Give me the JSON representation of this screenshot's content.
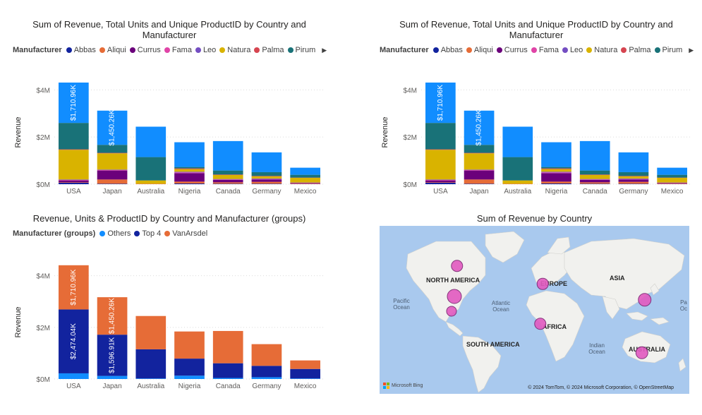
{
  "colors": {
    "Abbas": "#12239E",
    "Aliqui": "#E66C37",
    "Currus": "#6B007B",
    "Fama": "#E044A7",
    "Leo": "#744EC2",
    "Natura": "#D9B300",
    "Palma": "#D64550",
    "Pirum": "#197278",
    "VanArsdel": "#118DFF",
    "Others": "#118DFF",
    "Top 4": "#12239E",
    "VanArsdel (groups)": "#E66C37",
    "gridline": "#dcdcdc",
    "map_ocean": "#a9c9ee",
    "map_land": "#f1f1ee",
    "bubble": "#e25ac0"
  },
  "visual1": {
    "title": "Sum of Revenue, Total Units and Unique ProductID by Country and Manufacturer",
    "legend_title": "Manufacturer",
    "legend": [
      "Abbas",
      "Aliqui",
      "Currus",
      "Fama",
      "Leo",
      "Natura",
      "Palma",
      "Pirum"
    ],
    "legend_more_icon": "chevron-right-icon"
  },
  "visual2": {
    "title": "Sum of Revenue, Total Units and Unique ProductID by Country and Manufacturer",
    "legend_title": "Manufacturer",
    "legend": [
      "Abbas",
      "Aliqui",
      "Currus",
      "Fama",
      "Leo",
      "Natura",
      "Palma",
      "Pirum"
    ],
    "legend_more_icon": "chevron-right-icon"
  },
  "visual3": {
    "title": "Revenue, Units & ProductID by Country and Manufacturer (groups)",
    "legend_title": "Manufacturer (groups)",
    "legend": [
      "Others",
      "Top 4",
      "VanArsdel"
    ]
  },
  "visual4": {
    "title": "Sum of Revenue by Country",
    "labels": {
      "north_america": "NORTH AMERICA",
      "europe": "EUROPE",
      "asia": "ASIA",
      "africa": "AFRICA",
      "south_america": "SOUTH AMERICA",
      "australia": "AUSTRALIA"
    },
    "oceans": {
      "pacific_left": "Pacific Ocean",
      "atlantic": "Atlantic Ocean",
      "indian": "Indian Ocean",
      "pacific_right": "Pa Oc"
    },
    "copyright": "© 2024 TomTom, © 2024 Microsoft Corporation, © OpenStreetMap",
    "bing": "Microsoft Bing"
  },
  "chart_data": [
    {
      "type": "bar",
      "stacked": true,
      "title": "Sum of Revenue, Total Units and Unique ProductID by Country and Manufacturer",
      "xlabel": "",
      "ylabel": "Revenue",
      "ylim": [
        0,
        4400000
      ],
      "yticks": [
        "$0M",
        "$2M",
        "$4M"
      ],
      "grid": true,
      "legend_position": "top-left",
      "categories": [
        "USA",
        "Japan",
        "Australia",
        "Nigeria",
        "Canada",
        "Germany",
        "Mexico"
      ],
      "series": [
        {
          "name": "Abbas",
          "values": [
            60000,
            20000,
            0,
            30000,
            20000,
            20000,
            10000
          ]
        },
        {
          "name": "Aliqui",
          "values": [
            20000,
            180000,
            20000,
            80000,
            60000,
            80000,
            20000
          ]
        },
        {
          "name": "Currus",
          "values": [
            80000,
            380000,
            0,
            360000,
            100000,
            100000,
            20000
          ]
        },
        {
          "name": "Fama",
          "values": [
            20000,
            20000,
            0,
            30000,
            20000,
            20000,
            10000
          ]
        },
        {
          "name": "Leo",
          "values": [
            20000,
            20000,
            0,
            30000,
            20000,
            20000,
            10000
          ]
        },
        {
          "name": "Natura",
          "values": [
            1260000,
            690000,
            140000,
            110000,
            170000,
            90000,
            200000
          ]
        },
        {
          "name": "Palma",
          "values": [
            20000,
            20000,
            0,
            30000,
            20000,
            20000,
            10000
          ]
        },
        {
          "name": "Pirum",
          "values": [
            1120000,
            340000,
            990000,
            60000,
            170000,
            160000,
            120000
          ]
        },
        {
          "name": "VanArsdel",
          "values": [
            1710960,
            1450260,
            1290000,
            1050000,
            1250000,
            840000,
            300000
          ]
        }
      ],
      "data_labels": [
        {
          "category": "USA",
          "series": "VanArsdel",
          "text": "$1,710.96K"
        },
        {
          "category": "Japan",
          "series": "VanArsdel",
          "text": "$1,450.26K"
        }
      ]
    },
    {
      "type": "bar",
      "stacked": true,
      "title": "Sum of Revenue, Total Units and Unique ProductID by Country and Manufacturer",
      "xlabel": "",
      "ylabel": "Revenue",
      "ylim": [
        0,
        4400000
      ],
      "yticks": [
        "$0M",
        "$2M",
        "$4M"
      ],
      "grid": true,
      "legend_position": "top-left",
      "categories": [
        "USA",
        "Japan",
        "Australia",
        "Nigeria",
        "Canada",
        "Germany",
        "Mexico"
      ],
      "series": [
        {
          "name": "Abbas",
          "values": [
            60000,
            20000,
            0,
            30000,
            20000,
            20000,
            10000
          ]
        },
        {
          "name": "Aliqui",
          "values": [
            20000,
            180000,
            20000,
            80000,
            60000,
            80000,
            20000
          ]
        },
        {
          "name": "Currus",
          "values": [
            80000,
            380000,
            0,
            360000,
            100000,
            100000,
            20000
          ]
        },
        {
          "name": "Fama",
          "values": [
            20000,
            20000,
            0,
            30000,
            20000,
            20000,
            10000
          ]
        },
        {
          "name": "Leo",
          "values": [
            20000,
            20000,
            0,
            30000,
            20000,
            20000,
            10000
          ]
        },
        {
          "name": "Natura",
          "values": [
            1260000,
            690000,
            140000,
            110000,
            170000,
            90000,
            200000
          ]
        },
        {
          "name": "Palma",
          "values": [
            20000,
            20000,
            0,
            30000,
            20000,
            20000,
            10000
          ]
        },
        {
          "name": "Pirum",
          "values": [
            1120000,
            340000,
            990000,
            60000,
            170000,
            160000,
            120000
          ]
        },
        {
          "name": "VanArsdel",
          "values": [
            1710960,
            1450260,
            1290000,
            1050000,
            1250000,
            840000,
            300000
          ]
        }
      ],
      "data_labels": [
        {
          "category": "USA",
          "series": "VanArsdel",
          "text": "$1,710.96K"
        },
        {
          "category": "Japan",
          "series": "VanArsdel",
          "text": "$1,450.26K"
        }
      ]
    },
    {
      "type": "bar",
      "stacked": true,
      "title": "Revenue, Units & ProductID by Country and Manufacturer (groups)",
      "xlabel": "",
      "ylabel": "Revenue",
      "ylim": [
        0,
        4400000
      ],
      "yticks": [
        "$0M",
        "$2M",
        "$4M"
      ],
      "grid": true,
      "legend_position": "top-left",
      "categories": [
        "USA",
        "Japan",
        "Australia",
        "Nigeria",
        "Canada",
        "Germany",
        "Mexico"
      ],
      "series": [
        {
          "name": "Others",
          "values": [
            220000,
            120000,
            20000,
            130000,
            40000,
            70000,
            20000
          ]
        },
        {
          "name": "Top 4",
          "values": [
            2474040,
            1596910,
            1130000,
            660000,
            570000,
            440000,
            370000
          ]
        },
        {
          "name": "VanArsdel",
          "values": [
            1710960,
            1450260,
            1290000,
            1050000,
            1250000,
            840000,
            330000
          ]
        }
      ],
      "data_labels": [
        {
          "category": "USA",
          "series": "Top 4",
          "text": "$2,474.04K"
        },
        {
          "category": "USA",
          "series": "VanArsdel",
          "text": "$1,710.96K"
        },
        {
          "category": "Japan",
          "series": "Top 4",
          "text": "$1,596.91K"
        },
        {
          "category": "Japan",
          "series": "VanArsdel",
          "text": "$1,450.26K"
        }
      ]
    },
    {
      "type": "map",
      "title": "Sum of Revenue by Country",
      "points": [
        {
          "country": "USA",
          "value": 4405000
        },
        {
          "country": "Japan",
          "value": 3167000
        },
        {
          "country": "Australia",
          "value": 2440000
        },
        {
          "country": "Nigeria",
          "value": 1840000
        },
        {
          "country": "Canada",
          "value": 1860000
        },
        {
          "country": "Germany",
          "value": 1350000
        },
        {
          "country": "Mexico",
          "value": 720000
        }
      ]
    }
  ]
}
